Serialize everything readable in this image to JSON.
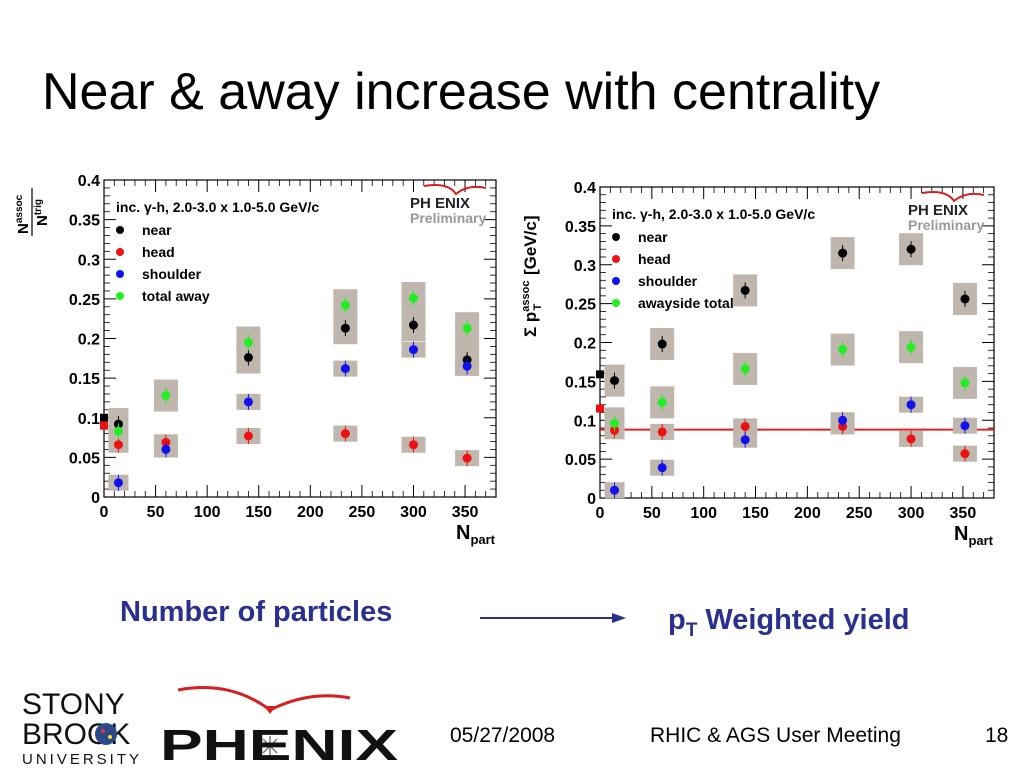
{
  "slide": {
    "title": "Near & away increase with centrality",
    "caption_left": "Number of particles",
    "caption_right_main": "p",
    "caption_right_sub": "T",
    "caption_right_rest": " Weighted yield",
    "date": "05/27/2008",
    "meeting": "RHIC & AGS User Meeting",
    "page": "18"
  },
  "logos": {
    "university_line1": "STONY",
    "university_line2": "BROOK",
    "university_line3": "UNIVERSITY",
    "experiment": "PHENIX"
  },
  "colors": {
    "caption": "#2b2f8f",
    "near": "#000000",
    "head": "#ee1111",
    "shoulder": "#1111ee",
    "away": "#22ee22",
    "systematic_box": "#bfb6ad",
    "fit_line": "#dd2222"
  },
  "chart_data": [
    {
      "type": "scatter",
      "title": "inc. γ-h, 2.0-3.0 x 1.0-5.0 GeV/c",
      "badge_line1": "PH ENIX",
      "badge_line2": "Preliminary",
      "xlabel": "N",
      "xlabel_sub": "part",
      "ylabel_num": "N",
      "ylabel_num_sup": "assoc",
      "ylabel_den": "N",
      "ylabel_den_sup": "trig",
      "xlim": [
        0,
        380
      ],
      "ylim": [
        0,
        0.4
      ],
      "x_ticks": [
        "0",
        "50",
        "100",
        "150",
        "200",
        "250",
        "300",
        "350"
      ],
      "y_ticks": [
        "0",
        "0.05",
        "0.1",
        "0.15",
        "0.2",
        "0.25",
        "0.3",
        "0.35",
        "0.4"
      ],
      "legend": [
        "near",
        "head",
        "shoulder",
        "total away"
      ],
      "series": [
        {
          "name": "near",
          "points": [
            [
              14,
              0.092
            ],
            [
              140,
              0.176
            ],
            [
              234,
              0.213
            ],
            [
              300,
              0.217
            ],
            [
              352,
              0.173
            ]
          ]
        },
        {
          "name": "head",
          "points": [
            [
              14,
              0.066
            ],
            [
              60,
              0.069
            ],
            [
              140,
              0.077
            ],
            [
              234,
              0.08
            ],
            [
              300,
              0.066
            ],
            [
              352,
              0.049
            ]
          ]
        },
        {
          "name": "shoulder",
          "points": [
            [
              14,
              0.018
            ],
            [
              60,
              0.06
            ],
            [
              140,
              0.12
            ],
            [
              234,
              0.162
            ],
            [
              300,
              0.186
            ],
            [
              352,
              0.165
            ]
          ]
        },
        {
          "name": "total away",
          "points": [
            [
              14,
              0.083
            ],
            [
              60,
              0.128
            ],
            [
              140,
              0.195
            ],
            [
              234,
              0.242
            ],
            [
              300,
              0.251
            ],
            [
              352,
              0.213
            ]
          ]
        }
      ],
      "pp_reference": [
        {
          "series": "near",
          "x": 0,
          "y": 0.1
        },
        {
          "series": "head",
          "x": 0,
          "y": 0.09
        }
      ]
    },
    {
      "type": "scatter",
      "title": "inc. γ-h, 2.0-3.0 x 1.0-5.0 GeV/c",
      "badge_line1": "PH ENIX",
      "badge_line2": "Preliminary",
      "xlabel": "N",
      "xlabel_sub": "part",
      "ylabel": "Σ p",
      "ylabel_sup": "assoc",
      "ylabel_sub": "T",
      "ylabel_unit": "[GeV/c]",
      "xlim": [
        0,
        380
      ],
      "ylim": [
        0,
        0.4
      ],
      "x_ticks": [
        "0",
        "50",
        "100",
        "150",
        "200",
        "250",
        "300",
        "350"
      ],
      "y_ticks": [
        "0",
        "0.05",
        "0.1",
        "0.15",
        "0.2",
        "0.25",
        "0.3",
        "0.35",
        "0.4"
      ],
      "legend": [
        "near",
        "head",
        "shoulder",
        "awayside total"
      ],
      "series": [
        {
          "name": "near",
          "points": [
            [
              14,
              0.151
            ],
            [
              60,
              0.198
            ],
            [
              140,
              0.267
            ],
            [
              234,
              0.315
            ],
            [
              300,
              0.32
            ],
            [
              352,
              0.256
            ]
          ]
        },
        {
          "name": "head",
          "points": [
            [
              14,
              0.087
            ],
            [
              60,
              0.085
            ],
            [
              140,
              0.092
            ],
            [
              234,
              0.092
            ],
            [
              300,
              0.076
            ],
            [
              352,
              0.057
            ]
          ]
        },
        {
          "name": "shoulder",
          "points": [
            [
              14,
              0.01
            ],
            [
              60,
              0.039
            ],
            [
              140,
              0.075
            ],
            [
              234,
              0.1
            ],
            [
              300,
              0.12
            ],
            [
              352,
              0.093
            ]
          ]
        },
        {
          "name": "awayside total",
          "points": [
            [
              14,
              0.096
            ],
            [
              60,
              0.123
            ],
            [
              140,
              0.166
            ],
            [
              234,
              0.191
            ],
            [
              300,
              0.194
            ],
            [
              352,
              0.148
            ]
          ]
        }
      ],
      "pp_reference": [
        {
          "series": "near",
          "x": 0,
          "y": 0.159
        },
        {
          "series": "head",
          "x": 0,
          "y": 0.115
        }
      ],
      "reference_line_y": 0.088
    }
  ]
}
